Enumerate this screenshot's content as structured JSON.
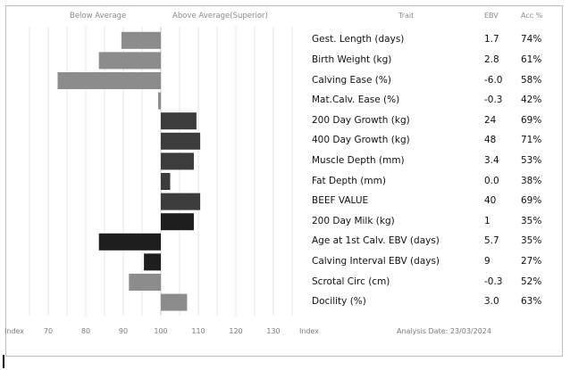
{
  "header": {
    "below_average": "Below Average",
    "above_average": "Above Average(Superior)",
    "trait": "Trait",
    "ebv": "EBV",
    "acc": "Acc %"
  },
  "footer": {
    "index_left": "Index",
    "index_right": "Index",
    "analysis_date": "Analysis Date: 23/03/2024"
  },
  "chart_data": {
    "type": "bar",
    "orientation": "horizontal",
    "x_axis_label": "Index",
    "x_ticks": [
      70,
      80,
      90,
      100,
      110,
      120,
      130
    ],
    "xlim": [
      65,
      135
    ],
    "baseline": 100,
    "colors": {
      "group1": "#8c8c8c",
      "group2": "#3c3c3c",
      "group3": "#1e1e1e"
    },
    "rows": [
      {
        "trait": "Gest. Length (days)",
        "ebv": "1.7",
        "acc": "74%",
        "index": 89.5,
        "group": "group1"
      },
      {
        "trait": "Birth Weight (kg)",
        "ebv": "2.8",
        "acc": "61%",
        "index": 83.5,
        "group": "group1"
      },
      {
        "trait": "Calving Ease (%)",
        "ebv": "-6.0",
        "acc": "58%",
        "index": 72.5,
        "group": "group1"
      },
      {
        "trait": "Mat.Calv. Ease (%)",
        "ebv": "-0.3",
        "acc": "42%",
        "index": 99.3,
        "group": "group1"
      },
      {
        "trait": "200 Day Growth (kg)",
        "ebv": "24",
        "acc": "69%",
        "index": 109.5,
        "group": "group2"
      },
      {
        "trait": "400 Day Growth (kg)",
        "ebv": "48",
        "acc": "71%",
        "index": 110.5,
        "group": "group2"
      },
      {
        "trait": "Muscle Depth (mm)",
        "ebv": "3.4",
        "acc": "53%",
        "index": 108.8,
        "group": "group2"
      },
      {
        "trait": "Fat Depth (mm)",
        "ebv": "0.0",
        "acc": "38%",
        "index": 102.5,
        "group": "group2"
      },
      {
        "trait": "BEEF VALUE",
        "ebv": "40",
        "acc": "69%",
        "index": 110.5,
        "group": "group2"
      },
      {
        "trait": "200 Day Milk (kg)",
        "ebv": "1",
        "acc": "35%",
        "index": 108.8,
        "group": "group3"
      },
      {
        "trait": "Age at 1st Calv. EBV (days)",
        "ebv": "5.7",
        "acc": "35%",
        "index": 83.5,
        "group": "group3"
      },
      {
        "trait": "Calving Interval EBV (days)",
        "ebv": "9",
        "acc": "27%",
        "index": 95.5,
        "group": "group3"
      },
      {
        "trait": "Scrotal Circ (cm)",
        "ebv": "-0.3",
        "acc": "52%",
        "index": 91.5,
        "group": "group1"
      },
      {
        "trait": "Docility (%)",
        "ebv": "3.0",
        "acc": "63%",
        "index": 107.0,
        "group": "group1"
      }
    ]
  }
}
